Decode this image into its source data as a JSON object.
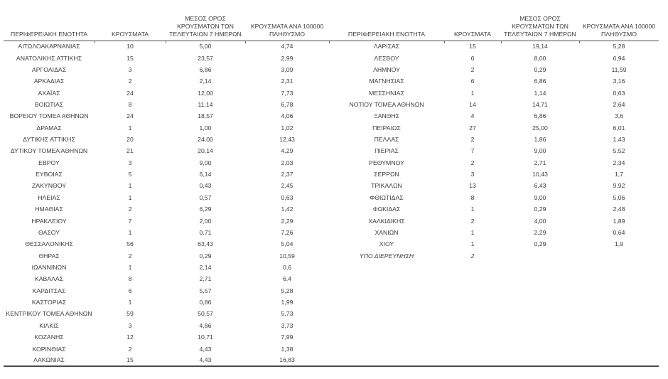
{
  "page": {
    "background": "#ffffff",
    "text_color": "#3d3d3d",
    "rule_color": "#4a4a4a"
  },
  "table": {
    "headers": {
      "region": "ΠΕΡΙΦΕΡΕΙΑΚΗ ΕΝΟΤΗΤΑ",
      "cases": "ΚΡΟΥΣΜΑΤΑ",
      "avg7": "ΜΕΣΟΣ ΟΡΟΣ\nΚΡΟΥΣΜΑΤΩΝ ΤΩΝ\nΤΕΛΕΥΤΑΙΩΝ 7 ΗΜΕΡΩΝ",
      "per100k": "ΚΡΟΥΣΜΑΤΑ ΑΝΑ 100000\nΠΛΗΘΥΣΜΟ"
    },
    "left_rows": [
      {
        "name": "ΑΙΤΩΛΟΑΚΑΡΝΑΝΙΑΣ",
        "cases": "10",
        "avg7": "5,00",
        "per100k": "4,74"
      },
      {
        "name": "ΑΝΑΤΟΛΙΚΗΣ ΑΤΤΙΚΗΣ",
        "cases": "15",
        "avg7": "23,57",
        "per100k": "2,99"
      },
      {
        "name": "ΑΡΓΟΛΙΔΑΣ",
        "cases": "3",
        "avg7": "6,86",
        "per100k": "3,09"
      },
      {
        "name": "ΑΡΚΑΔΙΑΣ",
        "cases": "2",
        "avg7": "2,14",
        "per100k": "2,31"
      },
      {
        "name": "ΑΧΑΪΑΣ",
        "cases": "24",
        "avg7": "12,00",
        "per100k": "7,73"
      },
      {
        "name": "ΒΟΙΩΤΙΑΣ",
        "cases": "8",
        "avg7": "11,14",
        "per100k": "6,78"
      },
      {
        "name": "ΒΟΡΕΙΟΥ ΤΟΜΕΑ ΑΘΗΝΩΝ",
        "cases": "24",
        "avg7": "18,57",
        "per100k": "4,06"
      },
      {
        "name": "ΔΡΑΜΑΣ",
        "cases": "1",
        "avg7": "1,00",
        "per100k": "1,02"
      },
      {
        "name": "ΔΥΤΙΚΗΣ ΑΤΤΙΚΗΣ",
        "cases": "20",
        "avg7": "24,00",
        "per100k": "12,43"
      },
      {
        "name": "ΔΥΤΙΚΟΥ ΤΟΜΕΑ ΑΘΗΝΩΝ",
        "cases": "21",
        "avg7": "20,14",
        "per100k": "4,29"
      },
      {
        "name": "ΕΒΡΟΥ",
        "cases": "3",
        "avg7": "9,00",
        "per100k": "2,03"
      },
      {
        "name": "ΕΥΒΟΙΑΣ",
        "cases": "5",
        "avg7": "6,14",
        "per100k": "2,37"
      },
      {
        "name": "ΖΑΚΥΝΘΟΥ",
        "cases": "1",
        "avg7": "0,43",
        "per100k": "2,45"
      },
      {
        "name": "ΗΛΕΙΑΣ",
        "cases": "1",
        "avg7": "0,57",
        "per100k": "0,63"
      },
      {
        "name": "ΗΜΑΘΙΑΣ",
        "cases": "2",
        "avg7": "6,29",
        "per100k": "1,42"
      },
      {
        "name": "ΗΡΑΚΛΕΙΟΥ",
        "cases": "7",
        "avg7": "2,00",
        "per100k": "2,29"
      },
      {
        "name": "ΘΑΣΟΥ",
        "cases": "1",
        "avg7": "0,71",
        "per100k": "7,26"
      },
      {
        "name": "ΘΕΣΣΑΛΟΝΙΚΗΣ",
        "cases": "56",
        "avg7": "63,43",
        "per100k": "5,04"
      },
      {
        "name": "ΘΗΡΑΣ",
        "cases": "2",
        "avg7": "0,29",
        "per100k": "10,59"
      },
      {
        "name": "ΙΩΑΝΝΙΝΩΝ",
        "cases": "1",
        "avg7": "2,14",
        "per100k": "0,6"
      },
      {
        "name": "ΚΑΒΑΛΑΣ",
        "cases": "8",
        "avg7": "2,71",
        "per100k": "6,4"
      },
      {
        "name": "ΚΑΡΔΙΤΣΑΣ",
        "cases": "6",
        "avg7": "5,57",
        "per100k": "5,28"
      },
      {
        "name": "ΚΑΣΤΟΡΙΑΣ",
        "cases": "1",
        "avg7": "0,86",
        "per100k": "1,99"
      },
      {
        "name": "ΚΕΝΤΡΙΚΟΥ ΤΟΜΕΑ ΑΘΗΝΩΝ",
        "cases": "59",
        "avg7": "50,57",
        "per100k": "5,73"
      },
      {
        "name": "ΚΙΛΚΙΣ",
        "cases": "3",
        "avg7": "4,86",
        "per100k": "3,73"
      },
      {
        "name": "ΚΟΖΑΝΗΣ",
        "cases": "12",
        "avg7": "10,71",
        "per100k": "7,99"
      },
      {
        "name": "ΚΟΡΙΝΘΙΑΣ",
        "cases": "2",
        "avg7": "4,43",
        "per100k": "1,38"
      },
      {
        "name": "ΛΑΚΩΝΙΑΣ",
        "cases": "15",
        "avg7": "4,43",
        "per100k": "16,83"
      }
    ],
    "right_rows": [
      {
        "name": "ΛΑΡΙΣΑΣ",
        "cases": "15",
        "avg7": "19,14",
        "per100k": "5,28"
      },
      {
        "name": "ΛΕΣΒΟΥ",
        "cases": "6",
        "avg7": "8,00",
        "per100k": "6,94"
      },
      {
        "name": "ΛΗΜΝΟΥ",
        "cases": "2",
        "avg7": "0,29",
        "per100k": "11,59"
      },
      {
        "name": "ΜΑΓΝΗΣΙΑΣ",
        "cases": "6",
        "avg7": "6,86",
        "per100k": "3,16"
      },
      {
        "name": "ΜΕΣΣΗΝΙΑΣ",
        "cases": "1",
        "avg7": "1,14",
        "per100k": "0,63"
      },
      {
        "name": "ΝΟΤΙΟΥ ΤΟΜΕΑ ΑΘΗΝΩΝ",
        "cases": "14",
        "avg7": "14,71",
        "per100k": "2,64"
      },
      {
        "name": "ΞΑΝΘΗΣ",
        "cases": "4",
        "avg7": "6,86",
        "per100k": "3,6"
      },
      {
        "name": "ΠΕΙΡΑΙΩΣ",
        "cases": "27",
        "avg7": "25,00",
        "per100k": "6,01"
      },
      {
        "name": "ΠΕΛΛΑΣ",
        "cases": "2",
        "avg7": "1,86",
        "per100k": "1,43"
      },
      {
        "name": "ΠΙΕΡΙΑΣ",
        "cases": "7",
        "avg7": "9,00",
        "per100k": "5,52"
      },
      {
        "name": "ΡΕΘΥΜΝΟΥ",
        "cases": "2",
        "avg7": "2,71",
        "per100k": "2,34"
      },
      {
        "name": "ΣΕΡΡΩΝ",
        "cases": "3",
        "avg7": "10,43",
        "per100k": "1,7"
      },
      {
        "name": "ΤΡΙΚΑΛΩΝ",
        "cases": "13",
        "avg7": "6,43",
        "per100k": "9,92"
      },
      {
        "name": "ΦΘΙΩΤΙΔΑΣ",
        "cases": "8",
        "avg7": "9,00",
        "per100k": "5,06"
      },
      {
        "name": "ΦΩΚΙΔΑΣ",
        "cases": "1",
        "avg7": "0,29",
        "per100k": "2,48"
      },
      {
        "name": "ΧΑΛΚΙΔΙΚΗΣ",
        "cases": "2",
        "avg7": "4,00",
        "per100k": "1,89"
      },
      {
        "name": "ΧΑΝΙΩΝ",
        "cases": "1",
        "avg7": "2,29",
        "per100k": "0,64"
      },
      {
        "name": "ΧΙΟΥ",
        "cases": "1",
        "avg7": "0,29",
        "per100k": "1,9"
      },
      {
        "name": "ΥΠΟ ΔΙΕΡΕΥΝΗΣΗ",
        "cases": "2",
        "avg7": "",
        "per100k": "",
        "italic": true
      }
    ]
  }
}
